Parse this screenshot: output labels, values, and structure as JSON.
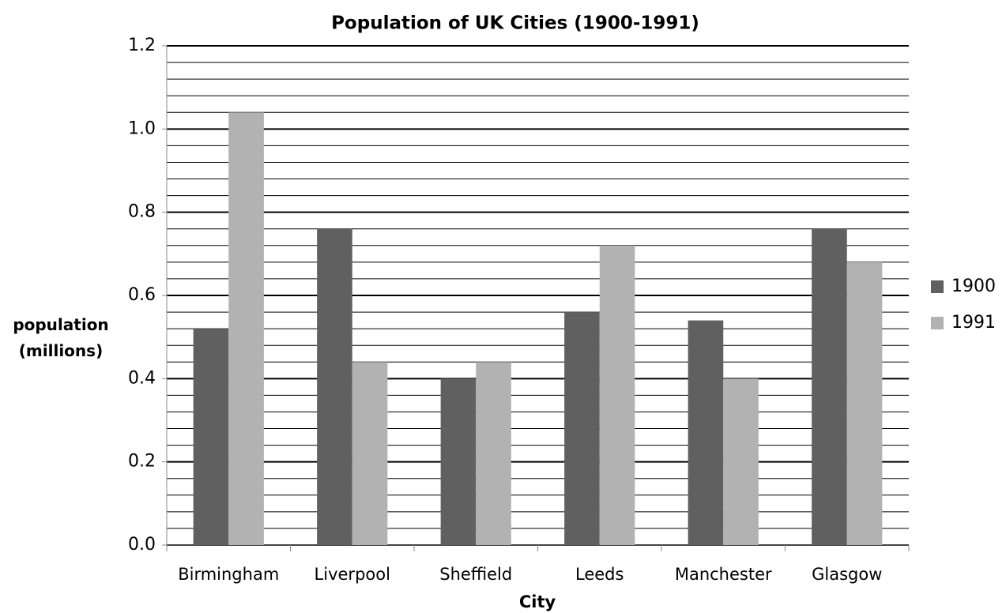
{
  "chart_data": {
    "type": "bar",
    "title": "Population of UK Cities (1900-1991)",
    "x_label": "City",
    "y_label": "population (millions)",
    "categories": [
      "Birmingham",
      "Liverpool",
      "Sheffield",
      "Leeds",
      "Manchester",
      "Glasgow"
    ],
    "series": [
      {
        "name": "1900",
        "color": "#606060",
        "values": [
          0.52,
          0.76,
          0.4,
          0.56,
          0.54,
          0.76
        ]
      },
      {
        "name": "1991",
        "color": "#b2b2b2",
        "values": [
          1.04,
          0.44,
          0.44,
          0.72,
          0.4,
          0.68
        ]
      }
    ],
    "ylim": [
      0,
      1.2
    ],
    "yticks": [
      {
        "value": 0,
        "label": "0.0"
      },
      0.2,
      0.4,
      0.6,
      0.8,
      {
        "value": 1,
        "label": "1.0"
      },
      1.2
    ],
    "minor_yticks": [
      0.04,
      0.08,
      0.12,
      0.16,
      0.24,
      0.28,
      0.32,
      0.36,
      0.44,
      0.48,
      0.52,
      0.56,
      0.64,
      0.68,
      0.72,
      0.76,
      0.84,
      0.88,
      0.92,
      0.96,
      1.04,
      1.08,
      1.12,
      1.16
    ],
    "grid": true,
    "legend": "right"
  }
}
